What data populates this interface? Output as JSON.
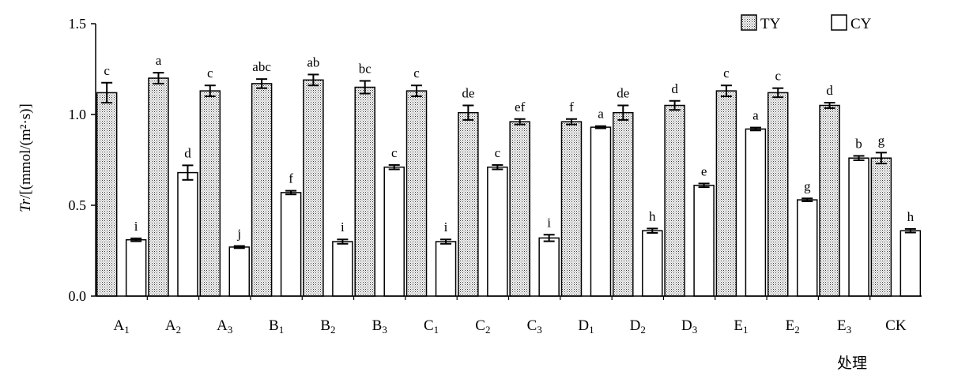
{
  "chart_data": {
    "type": "bar",
    "xlabel": "处理",
    "ylabel_italic": "Tr",
    "ylabel_rest": "/[(mmol/(m²·s)]",
    "ylim": [
      0,
      1.5
    ],
    "yticks": [
      "0.0",
      "0.5",
      "1.0",
      "1.5"
    ],
    "tick_values": [
      0,
      0.5,
      1.0,
      1.5
    ],
    "legend_position": "top-right",
    "categories": [
      {
        "base": "A",
        "sub": "1"
      },
      {
        "base": "A",
        "sub": "2"
      },
      {
        "base": "A",
        "sub": "3"
      },
      {
        "base": "B",
        "sub": "1"
      },
      {
        "base": "B",
        "sub": "2"
      },
      {
        "base": "B",
        "sub": "3"
      },
      {
        "base": "C",
        "sub": "1"
      },
      {
        "base": "C",
        "sub": "2"
      },
      {
        "base": "C",
        "sub": "3"
      },
      {
        "base": "D",
        "sub": "1"
      },
      {
        "base": "D",
        "sub": "2"
      },
      {
        "base": "D",
        "sub": "3"
      },
      {
        "base": "E",
        "sub": "1"
      },
      {
        "base": "E",
        "sub": "2"
      },
      {
        "base": "E",
        "sub": "3"
      },
      {
        "base": "CK",
        "sub": ""
      }
    ],
    "series": [
      {
        "name": "TY",
        "fill": "hatched",
        "values": [
          1.12,
          1.2,
          1.13,
          1.17,
          1.19,
          1.15,
          1.13,
          1.01,
          0.96,
          0.96,
          1.01,
          1.05,
          1.13,
          1.12,
          1.05,
          0.76
        ],
        "errors": [
          0.055,
          0.03,
          0.03,
          0.025,
          0.03,
          0.035,
          0.03,
          0.04,
          0.015,
          0.015,
          0.04,
          0.025,
          0.03,
          0.025,
          0.015,
          0.03
        ],
        "labels": [
          "c",
          "a",
          "c",
          "abc",
          "ab",
          "bc",
          "c",
          "de",
          "ef",
          "f",
          "de",
          "d",
          "c",
          "c",
          "d",
          "g"
        ]
      },
      {
        "name": "CY",
        "fill": "white",
        "values": [
          0.31,
          0.68,
          0.27,
          0.57,
          0.3,
          0.71,
          0.3,
          0.71,
          0.32,
          0.93,
          0.36,
          0.61,
          0.92,
          0.53,
          0.76,
          0.36
        ],
        "errors": [
          0.008,
          0.04,
          0.006,
          0.01,
          0.012,
          0.012,
          0.012,
          0.012,
          0.018,
          0.006,
          0.012,
          0.01,
          0.008,
          0.008,
          0.012,
          0.01
        ],
        "labels": [
          "i",
          "d",
          "j",
          "f",
          "i",
          "c",
          "i",
          "c",
          "i",
          "a",
          "h",
          "e",
          "a",
          "g",
          "b",
          "h"
        ]
      }
    ]
  }
}
